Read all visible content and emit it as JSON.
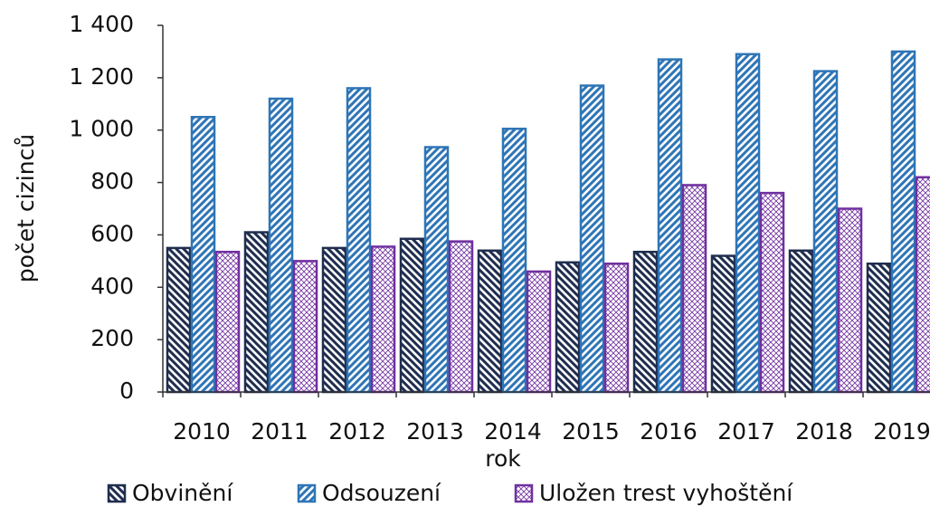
{
  "chart_data": {
    "type": "bar",
    "x_label": "rok",
    "y_label": "počet cizinců",
    "categories": [
      "2010",
      "2011",
      "2012",
      "2013",
      "2014",
      "2015",
      "2016",
      "2017",
      "2018",
      "2019"
    ],
    "series": [
      {
        "name": "Obvinění",
        "color": "#1f2d4e",
        "values": [
          550,
          610,
          550,
          585,
          540,
          495,
          535,
          520,
          540,
          490
        ]
      },
      {
        "name": "Odsouzení",
        "color": "#2e75b6",
        "values": [
          1050,
          1120,
          1160,
          935,
          1005,
          1170,
          1270,
          1290,
          1225,
          1300
        ]
      },
      {
        "name": "Uložen trest vyhoštění",
        "color": "#7030a0",
        "values": [
          535,
          500,
          555,
          575,
          460,
          490,
          790,
          760,
          700,
          820
        ]
      }
    ],
    "ylim": [
      0,
      1400
    ],
    "yticks": [
      0,
      200,
      400,
      600,
      800,
      {
        "value": 1000,
        "label": "1 000"
      },
      {
        "value": 1200,
        "label": "1 200"
      },
      {
        "value": 1400,
        "label": "1 400"
      }
    ],
    "legend": "bottom"
  }
}
